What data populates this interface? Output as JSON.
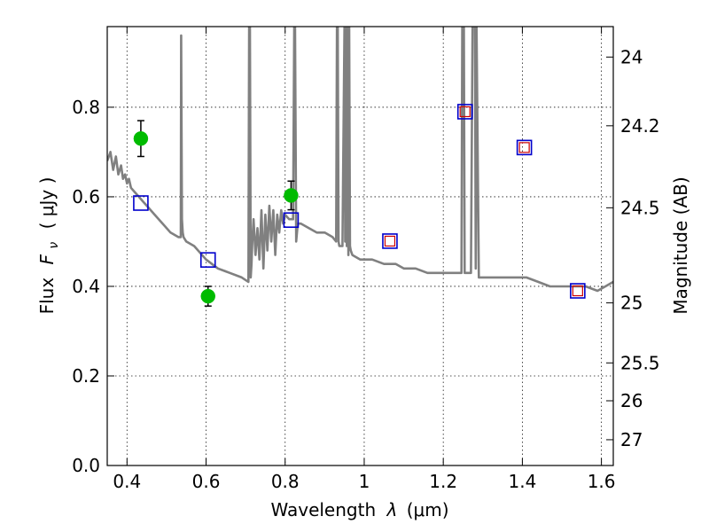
{
  "chart_data": {
    "type": "scatter",
    "xlabel_prefix": "Wavelength",
    "xlabel_symbol": "λ",
    "xlabel_unit": "(μm)",
    "ylabel_prefix": "Flux",
    "ylabel_symbol": "F",
    "ylabel_sub": "ν",
    "ylabel_unit": "( μJy )",
    "y2label": "Magnitude (AB)",
    "xlim": [
      0.35,
      1.63
    ],
    "ylim": [
      0.0,
      0.98
    ],
    "grid": true,
    "x_ticks": [
      0.4,
      0.6,
      0.8,
      1.0,
      1.2,
      1.4,
      1.6
    ],
    "x_tick_labels": [
      "0.4",
      "0.6",
      "0.8",
      "1",
      "1.2",
      "1.4",
      "1.6"
    ],
    "y_ticks": [
      0.0,
      0.2,
      0.4,
      0.6,
      0.8
    ],
    "y_tick_labels": [
      "0.0",
      "0.2",
      "0.4",
      "0.6",
      "0.8"
    ],
    "mag_ticks": [
      24,
      24.2,
      24.5,
      25,
      25.5,
      26,
      27
    ],
    "mag_tick_labels": [
      "24",
      "24.2",
      "24.5",
      "25",
      "25.5",
      "26",
      "27"
    ],
    "colors": {
      "observed": "#00bb00",
      "model": "#0000cc",
      "model_inner": "#cc0000",
      "template": "#808080"
    },
    "series": [
      {
        "name": "observed",
        "marker": "circle",
        "x": [
          0.435,
          0.605,
          0.815
        ],
        "y": [
          0.73,
          0.378,
          0.603
        ],
        "err": [
          0.04,
          0.022,
          0.032
        ]
      },
      {
        "name": "model_photometry",
        "marker": "square",
        "x": [
          0.435,
          0.605,
          0.815,
          1.065,
          1.255,
          1.405,
          1.54
        ],
        "y": [
          0.586,
          0.459,
          0.548,
          0.501,
          0.79,
          0.71,
          0.39
        ]
      },
      {
        "name": "model_photometry_inner",
        "marker": "square-small",
        "x": [
          1.065,
          1.255,
          1.405,
          1.54
        ],
        "y": [
          0.501,
          0.79,
          0.71,
          0.39
        ]
      },
      {
        "name": "template_spectrum",
        "marker": "line",
        "x": [
          0.35,
          0.358,
          0.365,
          0.372,
          0.378,
          0.385,
          0.39,
          0.395,
          0.4,
          0.405,
          0.41,
          0.42,
          0.43,
          0.44,
          0.45,
          0.47,
          0.49,
          0.51,
          0.53,
          0.536,
          0.537,
          0.539,
          0.541,
          0.543,
          0.55,
          0.57,
          0.6,
          0.63,
          0.66,
          0.69,
          0.707,
          0.709,
          0.711,
          0.713,
          0.715,
          0.717,
          0.72,
          0.725,
          0.73,
          0.735,
          0.74,
          0.745,
          0.75,
          0.755,
          0.76,
          0.765,
          0.77,
          0.775,
          0.78,
          0.785,
          0.79,
          0.795,
          0.8,
          0.81,
          0.82,
          0.823,
          0.825,
          0.828,
          0.832,
          0.84,
          0.86,
          0.88,
          0.9,
          0.92,
          0.929,
          0.931,
          0.933,
          0.935,
          0.937,
          0.945,
          0.95,
          0.952,
          0.954,
          0.956,
          0.958,
          0.96,
          0.962,
          0.964,
          0.966,
          0.97,
          0.99,
          1.02,
          1.05,
          1.08,
          1.1,
          1.13,
          1.16,
          1.19,
          1.22,
          1.246,
          1.248,
          1.25,
          1.252,
          1.254,
          1.27,
          1.274,
          1.276,
          1.278,
          1.28,
          1.282,
          1.284,
          1.29,
          1.32,
          1.35,
          1.38,
          1.41,
          1.44,
          1.47,
          1.5,
          1.53,
          1.56,
          1.59,
          1.61,
          1.63
        ],
        "y": [
          0.68,
          0.7,
          0.66,
          0.69,
          0.65,
          0.67,
          0.64,
          0.65,
          0.63,
          0.64,
          0.62,
          0.61,
          0.6,
          0.59,
          0.58,
          0.56,
          0.54,
          0.52,
          0.51,
          0.51,
          0.96,
          0.55,
          0.52,
          0.51,
          0.5,
          0.49,
          0.46,
          0.44,
          0.43,
          0.42,
          0.41,
          0.98,
          0.98,
          0.42,
          0.45,
          0.5,
          0.55,
          0.47,
          0.53,
          0.46,
          0.57,
          0.44,
          0.56,
          0.48,
          0.58,
          0.5,
          0.57,
          0.47,
          0.56,
          0.52,
          0.57,
          0.54,
          0.56,
          0.55,
          0.55,
          0.98,
          0.98,
          0.5,
          0.54,
          0.54,
          0.53,
          0.52,
          0.52,
          0.51,
          0.5,
          0.98,
          0.98,
          0.5,
          0.49,
          0.49,
          0.98,
          0.5,
          0.98,
          0.49,
          0.98,
          0.47,
          0.98,
          0.49,
          0.48,
          0.47,
          0.46,
          0.46,
          0.45,
          0.45,
          0.44,
          0.44,
          0.43,
          0.43,
          0.43,
          0.43,
          0.98,
          0.98,
          0.98,
          0.43,
          0.43,
          0.98,
          0.98,
          0.98,
          0.98,
          0.44,
          0.98,
          0.42,
          0.42,
          0.42,
          0.42,
          0.42,
          0.41,
          0.4,
          0.4,
          0.4,
          0.4,
          0.39,
          0.4,
          0.41
        ]
      }
    ]
  }
}
